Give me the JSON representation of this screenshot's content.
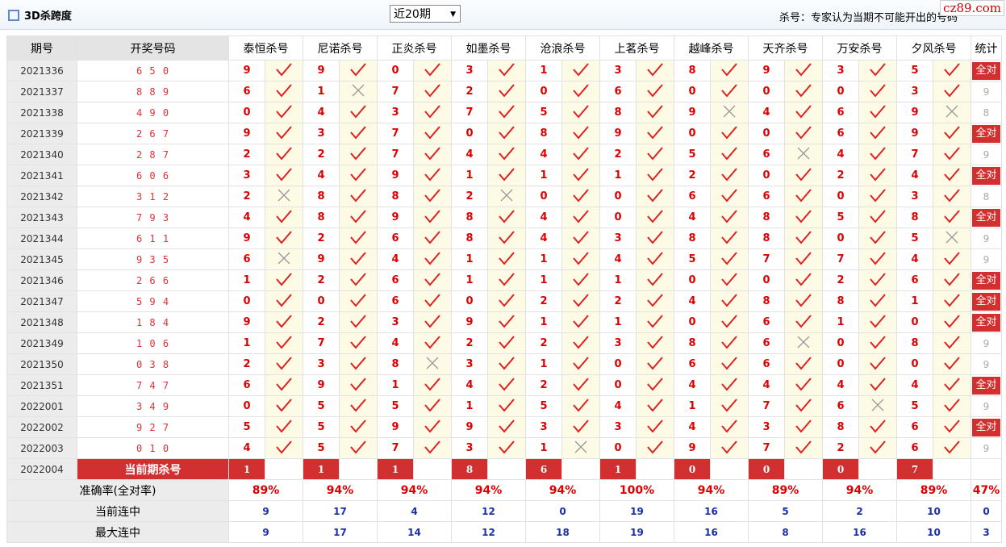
{
  "header": {
    "title": "3D杀跨度",
    "select": "近20期",
    "note": "杀号：专家认为当期不可能开出的号码",
    "logo": "cz89.com"
  },
  "table": {
    "headers": [
      "期号",
      "开奖号码",
      "泰恒杀号",
      "尼诺杀号",
      "正炎杀号",
      "如墨杀号",
      "沧浪杀号",
      "上茗杀号",
      "越峰杀号",
      "天齐杀号",
      "万安杀号",
      "夕风杀号",
      "统计"
    ],
    "rows": [
      {
        "period": "2021336",
        "draw": "6 5 0",
        "kills": [
          9,
          9,
          0,
          3,
          1,
          3,
          8,
          9,
          3,
          5
        ],
        "hits": [
          true,
          true,
          true,
          true,
          true,
          true,
          true,
          true,
          true,
          true
        ],
        "stat": "全对"
      },
      {
        "period": "2021337",
        "draw": "8 8 9",
        "kills": [
          6,
          1,
          7,
          2,
          0,
          6,
          0,
          0,
          0,
          3
        ],
        "hits": [
          true,
          false,
          true,
          true,
          true,
          true,
          true,
          true,
          true,
          true
        ],
        "stat": 9
      },
      {
        "period": "2021338",
        "draw": "4 9 0",
        "kills": [
          0,
          4,
          3,
          7,
          5,
          8,
          9,
          4,
          6,
          9
        ],
        "hits": [
          true,
          true,
          true,
          true,
          true,
          true,
          false,
          true,
          true,
          false
        ],
        "stat": 8
      },
      {
        "period": "2021339",
        "draw": "2 6 7",
        "kills": [
          9,
          3,
          7,
          0,
          8,
          9,
          0,
          0,
          6,
          9
        ],
        "hits": [
          true,
          true,
          true,
          true,
          true,
          true,
          true,
          true,
          true,
          true
        ],
        "stat": "全对"
      },
      {
        "period": "2021340",
        "draw": "2 8 7",
        "kills": [
          2,
          2,
          7,
          4,
          4,
          2,
          5,
          6,
          4,
          7
        ],
        "hits": [
          true,
          true,
          true,
          true,
          true,
          true,
          true,
          false,
          true,
          true
        ],
        "stat": 9
      },
      {
        "period": "2021341",
        "draw": "6 0 6",
        "kills": [
          3,
          4,
          9,
          1,
          1,
          1,
          2,
          0,
          2,
          4
        ],
        "hits": [
          true,
          true,
          true,
          true,
          true,
          true,
          true,
          true,
          true,
          true
        ],
        "stat": "全对"
      },
      {
        "period": "2021342",
        "draw": "3 1 2",
        "kills": [
          2,
          8,
          8,
          2,
          0,
          0,
          6,
          6,
          0,
          3
        ],
        "hits": [
          false,
          true,
          true,
          false,
          true,
          true,
          true,
          true,
          true,
          true
        ],
        "stat": 8
      },
      {
        "period": "2021343",
        "draw": "7 9 3",
        "kills": [
          4,
          8,
          9,
          8,
          4,
          0,
          4,
          8,
          5,
          8
        ],
        "hits": [
          true,
          true,
          true,
          true,
          true,
          true,
          true,
          true,
          true,
          true
        ],
        "stat": "全对"
      },
      {
        "period": "2021344",
        "draw": "6 1 1",
        "kills": [
          9,
          2,
          6,
          8,
          4,
          3,
          8,
          8,
          0,
          5
        ],
        "hits": [
          true,
          true,
          true,
          true,
          true,
          true,
          true,
          true,
          true,
          false
        ],
        "stat": 9
      },
      {
        "period": "2021345",
        "draw": "9 3 5",
        "kills": [
          6,
          9,
          4,
          1,
          1,
          4,
          5,
          7,
          7,
          4
        ],
        "hits": [
          false,
          true,
          true,
          true,
          true,
          true,
          true,
          true,
          true,
          true
        ],
        "stat": 9
      },
      {
        "period": "2021346",
        "draw": "2 6 6",
        "kills": [
          1,
          2,
          6,
          1,
          1,
          1,
          0,
          0,
          2,
          6
        ],
        "hits": [
          true,
          true,
          true,
          true,
          true,
          true,
          true,
          true,
          true,
          true
        ],
        "stat": "全对"
      },
      {
        "period": "2021347",
        "draw": "5 9 4",
        "kills": [
          0,
          0,
          6,
          0,
          2,
          2,
          4,
          8,
          8,
          1
        ],
        "hits": [
          true,
          true,
          true,
          true,
          true,
          true,
          true,
          true,
          true,
          true
        ],
        "stat": "全对"
      },
      {
        "period": "2021348",
        "draw": "1 8 4",
        "kills": [
          9,
          2,
          3,
          9,
          1,
          1,
          0,
          6,
          1,
          0
        ],
        "hits": [
          true,
          true,
          true,
          true,
          true,
          true,
          true,
          true,
          true,
          true
        ],
        "stat": "全对"
      },
      {
        "period": "2021349",
        "draw": "1 0 6",
        "kills": [
          1,
          7,
          4,
          2,
          2,
          3,
          8,
          6,
          0,
          8
        ],
        "hits": [
          true,
          true,
          true,
          true,
          true,
          true,
          true,
          false,
          true,
          true
        ],
        "stat": 9
      },
      {
        "period": "2021350",
        "draw": "0 3 8",
        "kills": [
          2,
          3,
          8,
          3,
          1,
          0,
          6,
          6,
          0,
          0
        ],
        "hits": [
          true,
          true,
          false,
          true,
          true,
          true,
          true,
          true,
          true,
          true
        ],
        "stat": 9
      },
      {
        "period": "2021351",
        "draw": "7 4 7",
        "kills": [
          6,
          9,
          1,
          4,
          2,
          0,
          4,
          4,
          4,
          4
        ],
        "hits": [
          true,
          true,
          true,
          true,
          true,
          true,
          true,
          true,
          true,
          true
        ],
        "stat": "全对"
      },
      {
        "period": "2022001",
        "draw": "3 4 9",
        "kills": [
          0,
          5,
          5,
          1,
          5,
          4,
          1,
          7,
          6,
          5
        ],
        "hits": [
          true,
          true,
          true,
          true,
          true,
          true,
          true,
          true,
          false,
          true
        ],
        "stat": 9
      },
      {
        "period": "2022002",
        "draw": "9 2 7",
        "kills": [
          5,
          5,
          9,
          9,
          3,
          3,
          4,
          3,
          8,
          6
        ],
        "hits": [
          true,
          true,
          true,
          true,
          true,
          true,
          true,
          true,
          true,
          true
        ],
        "stat": "全对"
      },
      {
        "period": "2022003",
        "draw": "0 1 0",
        "kills": [
          4,
          5,
          7,
          3,
          1,
          0,
          9,
          7,
          2,
          6
        ],
        "hits": [
          true,
          true,
          true,
          true,
          false,
          true,
          true,
          true,
          true,
          true
        ],
        "stat": 9
      }
    ],
    "current": {
      "period": "2022004",
      "label": "当前期杀号",
      "kills": [
        1,
        1,
        1,
        8,
        6,
        1,
        0,
        0,
        0,
        7
      ]
    },
    "summary": [
      {
        "label": "准确率(全对率)",
        "values": [
          "89%",
          "94%",
          "94%",
          "94%",
          "94%",
          "100%",
          "94%",
          "89%",
          "94%",
          "89%",
          "47%"
        ]
      },
      {
        "label": "当前连中",
        "values": [
          9,
          17,
          4,
          12,
          0,
          19,
          16,
          5,
          2,
          10,
          0
        ]
      },
      {
        "label": "最大连中",
        "values": [
          9,
          17,
          14,
          12,
          18,
          19,
          16,
          8,
          16,
          10,
          3
        ]
      }
    ]
  }
}
